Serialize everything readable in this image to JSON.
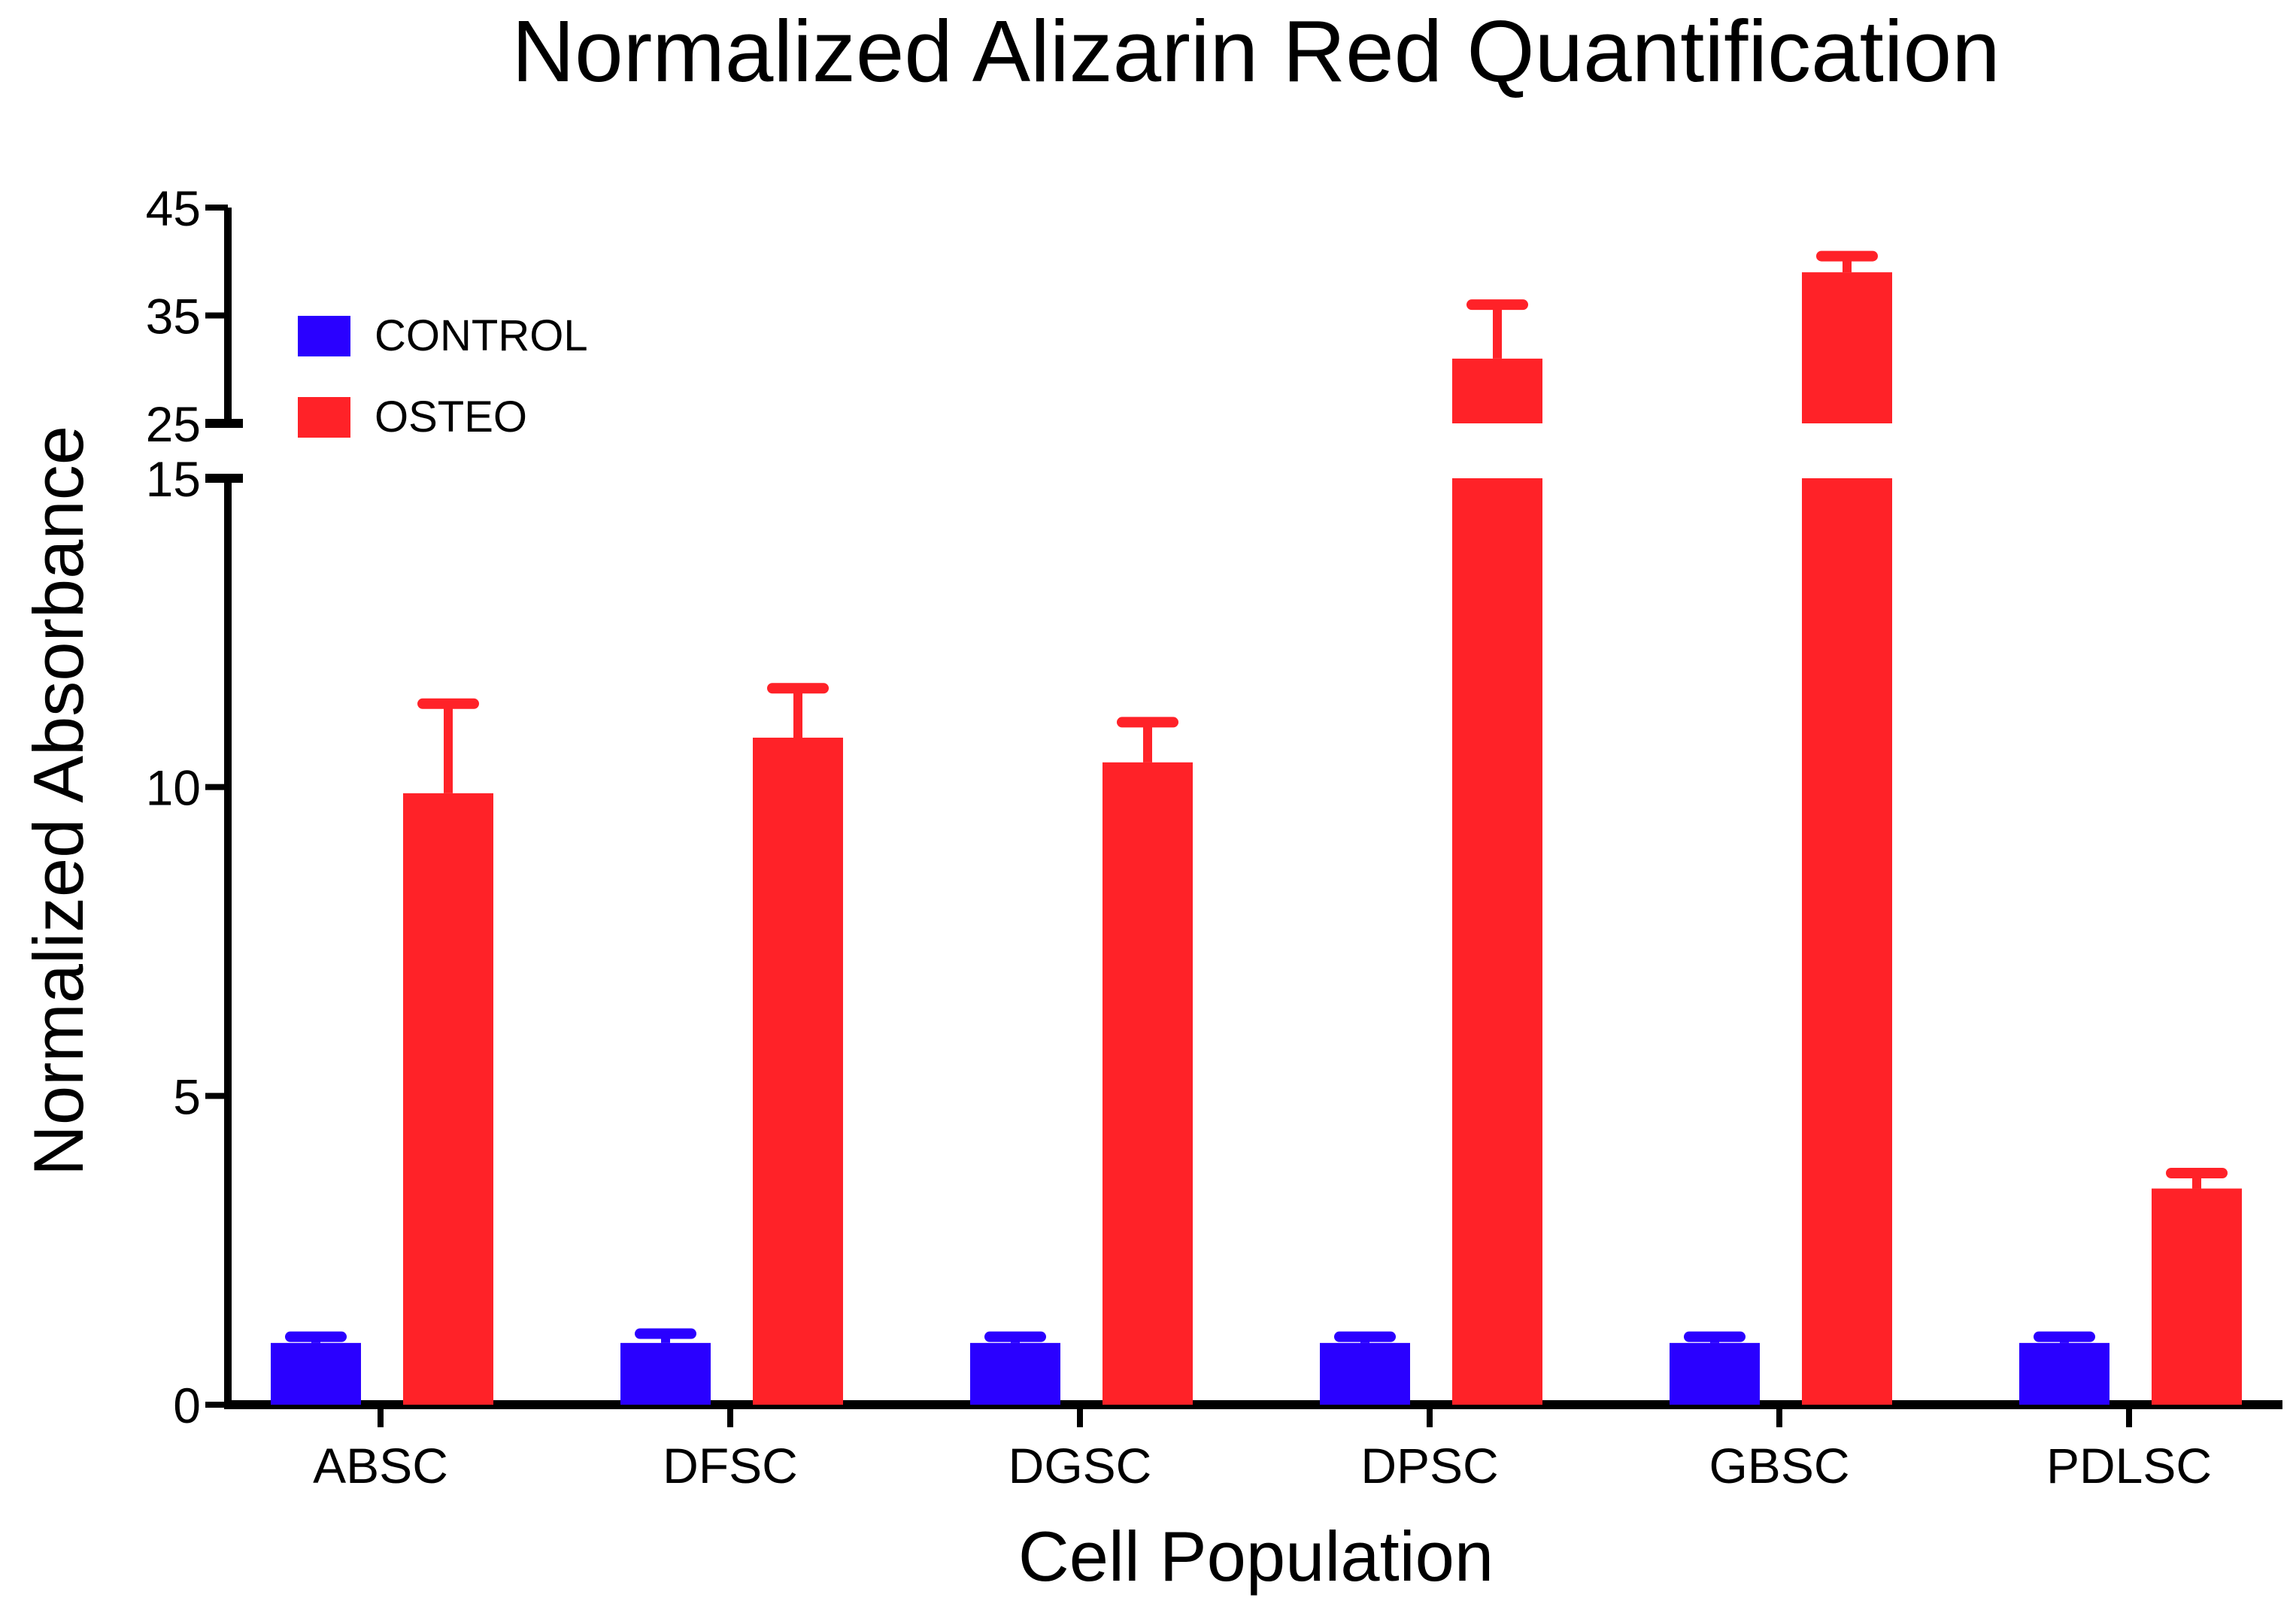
{
  "chart_data": {
    "type": "bar",
    "title": "Normalized Alizarin Red Quantification",
    "xlabel": "Cell Population",
    "ylabel": "Normalized Absorbance",
    "categories": [
      "ABSC",
      "DFSC",
      "DGSC",
      "DPSC",
      "GBSC",
      "PDLSC"
    ],
    "series": [
      {
        "name": "CONTROL",
        "color": "#2a00ff",
        "values": [
          1.0,
          1.0,
          1.0,
          1.0,
          1.0,
          1.0
        ],
        "errors": [
          0.1,
          0.15,
          0.1,
          0.1,
          0.1,
          0.1
        ]
      },
      {
        "name": "OSTEO",
        "color": "#ff2228",
        "values": [
          9.9,
          10.8,
          10.4,
          31.0,
          39.0,
          3.5
        ],
        "errors": [
          1.45,
          0.8,
          0.65,
          5.0,
          1.5,
          0.25
        ]
      }
    ],
    "y_axis": {
      "broken": true,
      "lower_segment": {
        "range": [
          0,
          15
        ],
        "ticks": [
          0,
          5,
          10,
          15
        ]
      },
      "upper_segment": {
        "range": [
          25,
          45
        ],
        "ticks": [
          25,
          35,
          45
        ]
      }
    },
    "ytick_labels": [
      "0",
      "5",
      "10",
      "15",
      "25",
      "35",
      "45"
    ],
    "legend_position": "top-left",
    "grid": false
  }
}
